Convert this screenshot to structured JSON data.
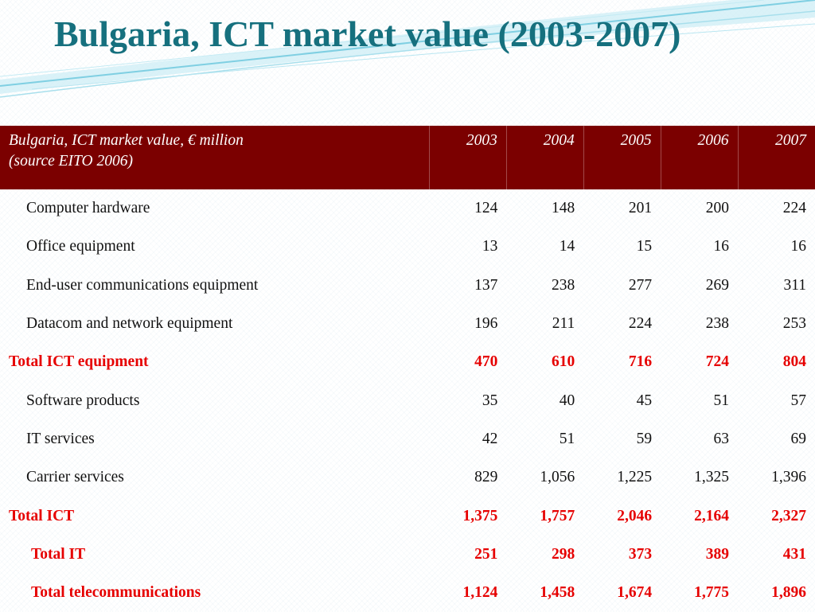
{
  "title": "Bulgaria, ICT market value (2003-2007)",
  "colors": {
    "title": "#16707e",
    "header_bg": "#7b0000",
    "total_text": "#e60000",
    "swoosh": "#8fd3e6"
  },
  "table": {
    "header": {
      "label_line1": "Bulgaria, ICT market value, € million",
      "label_line2": "(source EITO 2006)",
      "years": [
        "2003",
        "2004",
        "2005",
        "2006",
        "2007"
      ]
    },
    "rows": [
      {
        "label": "Computer hardware",
        "kind": "item",
        "values": [
          "124",
          "148",
          "201",
          "200",
          "224"
        ]
      },
      {
        "label": "Office equipment",
        "kind": "item",
        "values": [
          "13",
          "14",
          "15",
          "16",
          "16"
        ]
      },
      {
        "label": "End-user communications equipment",
        "kind": "item",
        "values": [
          "137",
          "238",
          "277",
          "269",
          "311"
        ]
      },
      {
        "label": "Datacom and network equipment",
        "kind": "item",
        "values": [
          "196",
          "211",
          "224",
          "238",
          "253"
        ]
      },
      {
        "label": "Total ICT equipment",
        "kind": "total",
        "values": [
          "470",
          "610",
          "716",
          "724",
          "804"
        ]
      },
      {
        "label": "Software products",
        "kind": "item",
        "values": [
          "35",
          "40",
          "45",
          "51",
          "57"
        ]
      },
      {
        "label": "IT services",
        "kind": "item",
        "values": [
          "42",
          "51",
          "59",
          "63",
          "69"
        ]
      },
      {
        "label": "Carrier services",
        "kind": "item",
        "values": [
          "829",
          "1,056",
          "1,225",
          "1,325",
          "1,396"
        ]
      },
      {
        "label": "Total ICT",
        "kind": "total",
        "values": [
          "1,375",
          "1,757",
          "2,046",
          "2,164",
          "2,327"
        ]
      },
      {
        "label": "Total IT",
        "kind": "subtotal",
        "values": [
          "251",
          "298",
          "373",
          "389",
          "431"
        ]
      },
      {
        "label": "Total telecommunications",
        "kind": "subtotal",
        "values": [
          "1,124",
          "1,458",
          "1,674",
          "1,775",
          "1,896"
        ]
      }
    ]
  }
}
